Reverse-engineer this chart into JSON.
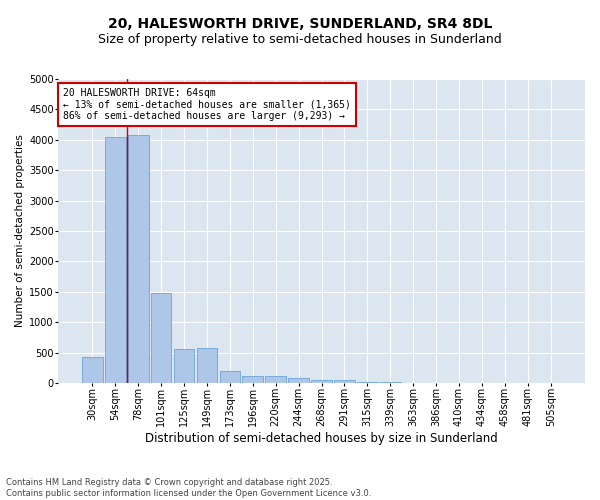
{
  "title": "20, HALESWORTH DRIVE, SUNDERLAND, SR4 8DL",
  "subtitle": "Size of property relative to semi-detached houses in Sunderland",
  "xlabel": "Distribution of semi-detached houses by size in Sunderland",
  "ylabel": "Number of semi-detached properties",
  "categories": [
    "30sqm",
    "54sqm",
    "78sqm",
    "101sqm",
    "125sqm",
    "149sqm",
    "173sqm",
    "196sqm",
    "220sqm",
    "244sqm",
    "268sqm",
    "291sqm",
    "315sqm",
    "339sqm",
    "363sqm",
    "386sqm",
    "410sqm",
    "434sqm",
    "458sqm",
    "481sqm",
    "505sqm"
  ],
  "values": [
    430,
    4050,
    4080,
    1480,
    560,
    570,
    200,
    120,
    110,
    80,
    50,
    40,
    15,
    8,
    5,
    3,
    2,
    1,
    1,
    0,
    0
  ],
  "bar_color": "#aec6e8",
  "bar_edge_color": "#5b9bd5",
  "vline_x": 1.5,
  "vline_color": "#cc0000",
  "annotation_line1": "20 HALESWORTH DRIVE: 64sqm",
  "annotation_line2": "← 13% of semi-detached houses are smaller (1,365)",
  "annotation_line3": "86% of semi-detached houses are larger (9,293) →",
  "annotation_box_color": "#cc0000",
  "ylim": [
    0,
    5000
  ],
  "yticks": [
    0,
    500,
    1000,
    1500,
    2000,
    2500,
    3000,
    3500,
    4000,
    4500,
    5000
  ],
  "bg_color": "#dce6f0",
  "footer": "Contains HM Land Registry data © Crown copyright and database right 2025.\nContains public sector information licensed under the Open Government Licence v3.0.",
  "title_fontsize": 10,
  "subtitle_fontsize": 9,
  "annotation_fontsize": 7,
  "footer_fontsize": 6,
  "ylabel_fontsize": 7.5,
  "xlabel_fontsize": 8.5,
  "tick_fontsize": 7
}
